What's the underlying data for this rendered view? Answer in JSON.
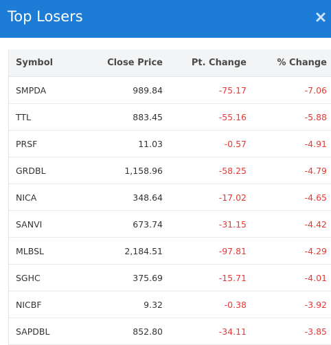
{
  "header": {
    "title": "Top Losers",
    "close_icon": "close-icon",
    "color": "#1c7cd6"
  },
  "table": {
    "columns": [
      "Symbol",
      "Close Price",
      "Pt. Change",
      "% Change"
    ],
    "rows": [
      {
        "symbol": "SMPDA",
        "close": "989.84",
        "pt": "-75.17",
        "pct": "-7.06"
      },
      {
        "symbol": "TTL",
        "close": "883.45",
        "pt": "-55.16",
        "pct": "-5.88"
      },
      {
        "symbol": "PRSF",
        "close": "11.03",
        "pt": "-0.57",
        "pct": "-4.91"
      },
      {
        "symbol": "GRDBL",
        "close": "1,158.96",
        "pt": "-58.25",
        "pct": "-4.79"
      },
      {
        "symbol": "NICA",
        "close": "348.64",
        "pt": "-17.02",
        "pct": "-4.65"
      },
      {
        "symbol": "SANVI",
        "close": "673.74",
        "pt": "-31.15",
        "pct": "-4.42"
      },
      {
        "symbol": "MLBSL",
        "close": "2,184.51",
        "pt": "-97.81",
        "pct": "-4.29"
      },
      {
        "symbol": "SGHC",
        "close": "375.69",
        "pt": "-15.71",
        "pct": "-4.01"
      },
      {
        "symbol": "NICBF",
        "close": "9.32",
        "pt": "-0.38",
        "pct": "-3.92"
      },
      {
        "symbol": "SAPDBL",
        "close": "852.80",
        "pt": "-34.11",
        "pct": "-3.85"
      }
    ],
    "negative_color": "#e53935"
  }
}
